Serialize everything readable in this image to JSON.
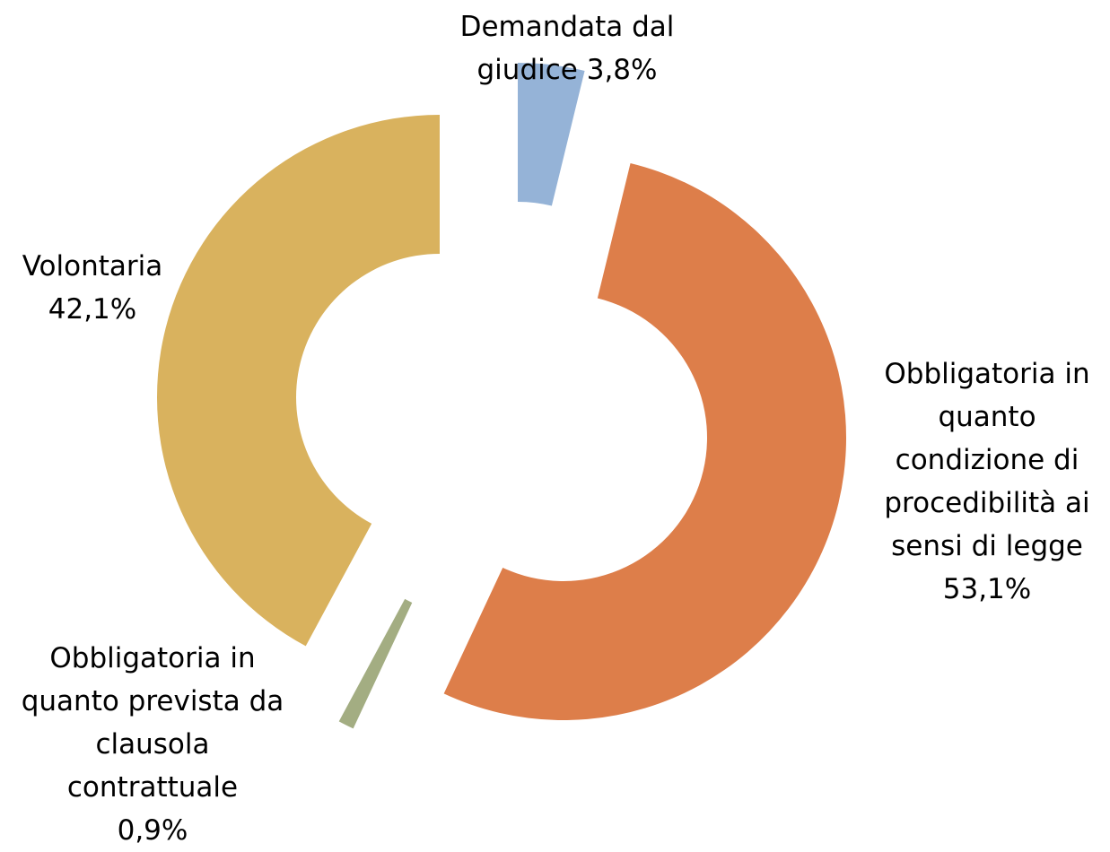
{
  "chart_data": {
    "type": "donut",
    "categories": [
      "Demandata dal giudice",
      "Obbligatoria in quanto condizione di procedibilità ai sensi di legge",
      "Obbligatoria in quanto prevista da clausola contrattuale",
      "Volontaria"
    ],
    "values": [
      3.8,
      53.1,
      0.9,
      42.1
    ],
    "value_labels": [
      "3,8%",
      "53,1%",
      "0,9%",
      "42,1%"
    ],
    "colors": [
      "#95b3d7",
      "#dd7e4a",
      "#a3ad82",
      "#d9b25e"
    ]
  }
}
